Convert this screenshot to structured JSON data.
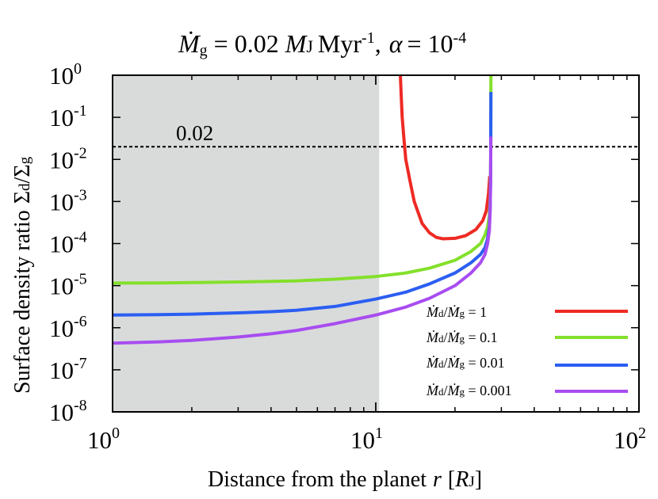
{
  "chart_data": {
    "type": "line",
    "title": "Ṁg = 0.02 MJ Myr^-1, α = 10^-4",
    "title_parts": {
      "mdot": "Ṁ",
      "mdot_sub": "g",
      "equals_value": "= 0.02",
      "mass_unit": "M",
      "mass_sub": "J",
      "time_unit": "Myr",
      "time_exp": "-1",
      "comma": ",",
      "alpha": "α",
      "alpha_eq": "= 10",
      "alpha_exp": "-4"
    },
    "xlabel": "Distance from the planet r [RJ]",
    "xlabel_parts": {
      "main": "Distance from the planet",
      "r": "r",
      "bracket_open": "[",
      "R": "R",
      "R_sub": "J",
      "bracket_close": "]"
    },
    "ylabel": "Surface density ratio Σd/Σg",
    "ylabel_parts": {
      "main": "Surface density ratio",
      "sigma1": "Σ",
      "sub1": "d",
      "slash": "/",
      "sigma2": "Σ",
      "sub2": "g"
    },
    "x_scale": "log",
    "y_scale": "log",
    "xlim": [
      1,
      100
    ],
    "ylim": [
      1e-08,
      1
    ],
    "x_ticks": [
      {
        "value": 1,
        "base": "10",
        "exp": "0"
      },
      {
        "value": 10,
        "base": "10",
        "exp": "1"
      },
      {
        "value": 100,
        "base": "10",
        "exp": "2"
      }
    ],
    "y_ticks": [
      {
        "value": 1,
        "base": "10",
        "exp": "0"
      },
      {
        "value": 0.1,
        "base": "10",
        "exp": "-1"
      },
      {
        "value": 0.01,
        "base": "10",
        "exp": "-2"
      },
      {
        "value": 0.001,
        "base": "10",
        "exp": "-3"
      },
      {
        "value": 0.0001,
        "base": "10",
        "exp": "-4"
      },
      {
        "value": 1e-05,
        "base": "10",
        "exp": "-5"
      },
      {
        "value": 1e-06,
        "base": "10",
        "exp": "-6"
      },
      {
        "value": 1e-07,
        "base": "10",
        "exp": "-7"
      },
      {
        "value": 1e-08,
        "base": "10",
        "exp": "-8"
      }
    ],
    "shaded_region": {
      "x_from": 1,
      "x_to": 10.3,
      "color": "#d9dbdb"
    },
    "reference_line": {
      "y": 0.02,
      "label": "0.02",
      "style": "dashed"
    },
    "legend_position": "bottom-right",
    "series": [
      {
        "name": "Ṁd/Ṁg = 1",
        "legend": {
          "m1": "Ṁ",
          "s1": "d",
          "slash": "/",
          "m2": "Ṁ",
          "s2": "g",
          "eq": " = 1"
        },
        "color": "#ee2a24",
        "points": [
          [
            12.4,
            1.0
          ],
          [
            12.5,
            0.3
          ],
          [
            12.6,
            0.1
          ],
          [
            12.8,
            0.03
          ],
          [
            13.0,
            0.01
          ],
          [
            13.5,
            0.003
          ],
          [
            14.0,
            0.001
          ],
          [
            15.0,
            0.0003
          ],
          [
            16.0,
            0.00018
          ],
          [
            17.0,
            0.00014
          ],
          [
            18.0,
            0.00013
          ],
          [
            20.0,
            0.000133
          ],
          [
            22.0,
            0.000155
          ],
          [
            24.0,
            0.000215
          ],
          [
            25.5,
            0.00035
          ],
          [
            26.3,
            0.0006
          ],
          [
            26.8,
            0.0015
          ],
          [
            27.1,
            0.004
          ]
        ]
      },
      {
        "name": "Ṁd/Ṁg = 0.1",
        "legend": {
          "m1": "Ṁ",
          "s1": "d",
          "slash": "/",
          "m2": "Ṁ",
          "s2": "g",
          "eq": " = 0.1"
        },
        "color": "#84e02b",
        "points": [
          [
            1.0,
            1.15e-05
          ],
          [
            1.5,
            1.16e-05
          ],
          [
            2.0,
            1.18e-05
          ],
          [
            3.0,
            1.22e-05
          ],
          [
            4.0,
            1.26e-05
          ],
          [
            5.0,
            1.3e-05
          ],
          [
            7.0,
            1.42e-05
          ],
          [
            10.0,
            1.65e-05
          ],
          [
            13.0,
            2e-05
          ],
          [
            16.0,
            2.6e-05
          ],
          [
            20.0,
            4e-05
          ],
          [
            23.0,
            6.5e-05
          ],
          [
            25.0,
            0.0001
          ],
          [
            26.0,
            0.00016
          ],
          [
            26.6,
            0.00025
          ],
          [
            27.0,
            0.00045
          ],
          [
            27.2,
            0.0011
          ],
          [
            27.3,
            0.004
          ],
          [
            27.35,
            0.03
          ],
          [
            27.37,
            0.3
          ],
          [
            27.38,
            1.0
          ]
        ]
      },
      {
        "name": "Ṁd/Ṁg = 0.01",
        "legend": {
          "m1": "Ṁ",
          "s1": "d",
          "slash": "/",
          "m2": "Ṁ",
          "s2": "g",
          "eq": " = 0.01"
        },
        "color": "#2b5ef2",
        "points": [
          [
            1.0,
            2e-06
          ],
          [
            1.5,
            2.04e-06
          ],
          [
            2.0,
            2.1e-06
          ],
          [
            3.0,
            2.25e-06
          ],
          [
            4.0,
            2.4e-06
          ],
          [
            5.0,
            2.6e-06
          ],
          [
            7.0,
            3.2e-06
          ],
          [
            10.0,
            4.8e-06
          ],
          [
            13.0,
            7e-06
          ],
          [
            16.0,
            1.1e-05
          ],
          [
            20.0,
            2e-05
          ],
          [
            23.0,
            3.5e-05
          ],
          [
            25.0,
            5.5e-05
          ],
          [
            26.0,
            8e-05
          ],
          [
            26.6,
            0.00013
          ],
          [
            27.0,
            0.00025
          ],
          [
            27.2,
            0.0007
          ],
          [
            27.3,
            0.003
          ],
          [
            27.35,
            0.03
          ],
          [
            27.37,
            0.2
          ],
          [
            27.38,
            0.4
          ]
        ]
      },
      {
        "name": "Ṁd/Ṁg = 0.001",
        "legend": {
          "m1": "Ṁ",
          "s1": "d",
          "slash": "/",
          "m2": "Ṁ",
          "s2": "g",
          "eq": " = 0.001"
        },
        "color": "#a84df0",
        "points": [
          [
            1.0,
            4.3e-07
          ],
          [
            1.5,
            4.6e-07
          ],
          [
            2.0,
            5e-07
          ],
          [
            3.0,
            6e-07
          ],
          [
            4.0,
            7.2e-07
          ],
          [
            5.0,
            8.6e-07
          ],
          [
            7.0,
            1.25e-06
          ],
          [
            10.0,
            2e-06
          ],
          [
            13.0,
            3.1e-06
          ],
          [
            16.0,
            5e-06
          ],
          [
            20.0,
            1e-05
          ],
          [
            23.0,
            2e-05
          ],
          [
            25.0,
            3.5e-05
          ],
          [
            26.0,
            5.5e-05
          ],
          [
            26.6,
            0.0001
          ],
          [
            27.0,
            0.0002
          ],
          [
            27.2,
            0.0006
          ],
          [
            27.3,
            0.003
          ],
          [
            27.35,
            0.02
          ],
          [
            27.37,
            0.035
          ]
        ]
      }
    ]
  }
}
